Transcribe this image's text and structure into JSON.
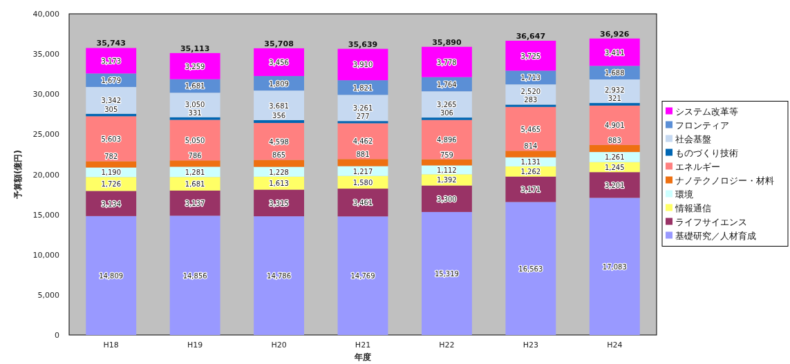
{
  "chart_data": {
    "type": "bar",
    "stacked": true,
    "xlabel": "年度",
    "ylabel": "予算額(億円)",
    "categories": [
      "H18",
      "H19",
      "H20",
      "H21",
      "H22",
      "H23",
      "H24"
    ],
    "ylim": [
      0,
      40000
    ],
    "yticks": [
      0,
      {
        "value": 5000,
        "label": "5,000"
      },
      {
        "value": 10000,
        "label": "10,000"
      },
      {
        "value": 15000,
        "label": "15,000"
      },
      {
        "value": 20000,
        "label": "20,000"
      },
      {
        "value": 25000,
        "label": "25,000"
      },
      {
        "value": 30000,
        "label": "30,000"
      },
      {
        "value": 35000,
        "label": "35,000"
      },
      {
        "value": 40000,
        "label": "40,000"
      }
    ],
    "grid": false,
    "legend": "right",
    "totals": [
      "35,743",
      "35,113",
      "35,708",
      "35,639",
      "35,890",
      "36,647",
      "36,926"
    ],
    "series": [
      {
        "name": "基礎研究／人材育成",
        "color": "#9999ff",
        "values": [
          14809,
          14856,
          14786,
          14769,
          15319,
          16563,
          17083
        ],
        "value_labels": [
          "14,809",
          "14,856",
          "14,786",
          "14,769",
          "15,319",
          "16,563",
          "17,083"
        ]
      },
      {
        "name": "ライフサイエンス",
        "color": "#993366",
        "values": [
          3134,
          3137,
          3315,
          3461,
          3300,
          3171,
          3201
        ],
        "value_labels": [
          "3,134",
          "3,137",
          "3,315",
          "3,461",
          "3,300",
          "3,171",
          "3,201"
        ]
      },
      {
        "name": "情報通信",
        "color": "#ffff66",
        "values": [
          1726,
          1681,
          1613,
          1580,
          1392,
          1262,
          1245
        ],
        "value_labels": [
          "1,726",
          "1,681",
          "1,613",
          "1,580",
          "1,392",
          "1,262",
          "1,245"
        ]
      },
      {
        "name": "環境",
        "color": "#ccffff",
        "values": [
          1190,
          1281,
          1228,
          1217,
          1112,
          1131,
          1261
        ],
        "value_labels": [
          "1,190",
          "1,281",
          "1,228",
          "1,217",
          "1,112",
          "1,131",
          "1,261"
        ]
      },
      {
        "name": "ナノテクノロジー・材料",
        "color": "#ee7011",
        "values": [
          782,
          786,
          865,
          881,
          759,
          814,
          883
        ],
        "value_labels": [
          "782",
          "786",
          "865",
          "881",
          "759",
          "814",
          "883"
        ]
      },
      {
        "name": "エネルギー",
        "color": "#ff8080",
        "values": [
          5603,
          5050,
          4598,
          4462,
          4896,
          5465,
          4901
        ],
        "value_labels": [
          "5,603",
          "5,050",
          "4,598",
          "4,462",
          "4,896",
          "5,465",
          "4,901"
        ]
      },
      {
        "name": "ものづくり技術",
        "color": "#0066b3",
        "values": [
          305,
          331,
          356,
          277,
          306,
          283,
          321
        ],
        "value_labels": [
          "305",
          "331",
          "356",
          "277",
          "306",
          "283",
          "321"
        ]
      },
      {
        "name": "社会基盤",
        "color": "#c6d9f1",
        "values": [
          3342,
          3050,
          3681,
          3261,
          3265,
          2520,
          2932
        ],
        "value_labels": [
          "3,342",
          "3,050",
          "3,681",
          "3,261",
          "3,265",
          "2,520",
          "2,932"
        ]
      },
      {
        "name": "フロンティア",
        "color": "#5b8fd6",
        "values": [
          1679,
          1681,
          1809,
          1821,
          1764,
          1713,
          1688
        ],
        "value_labels": [
          "1,679",
          "1,681",
          "1,809",
          "1,821",
          "1,764",
          "1,713",
          "1,688"
        ]
      },
      {
        "name": "システム改革等",
        "color": "#ff00ff",
        "values": [
          3173,
          3259,
          3456,
          3910,
          3778,
          3725,
          3411
        ],
        "value_labels": [
          "3,173",
          "3,259",
          "3,456",
          "3,910",
          "3,778",
          "3,725",
          "3,411"
        ]
      }
    ]
  }
}
